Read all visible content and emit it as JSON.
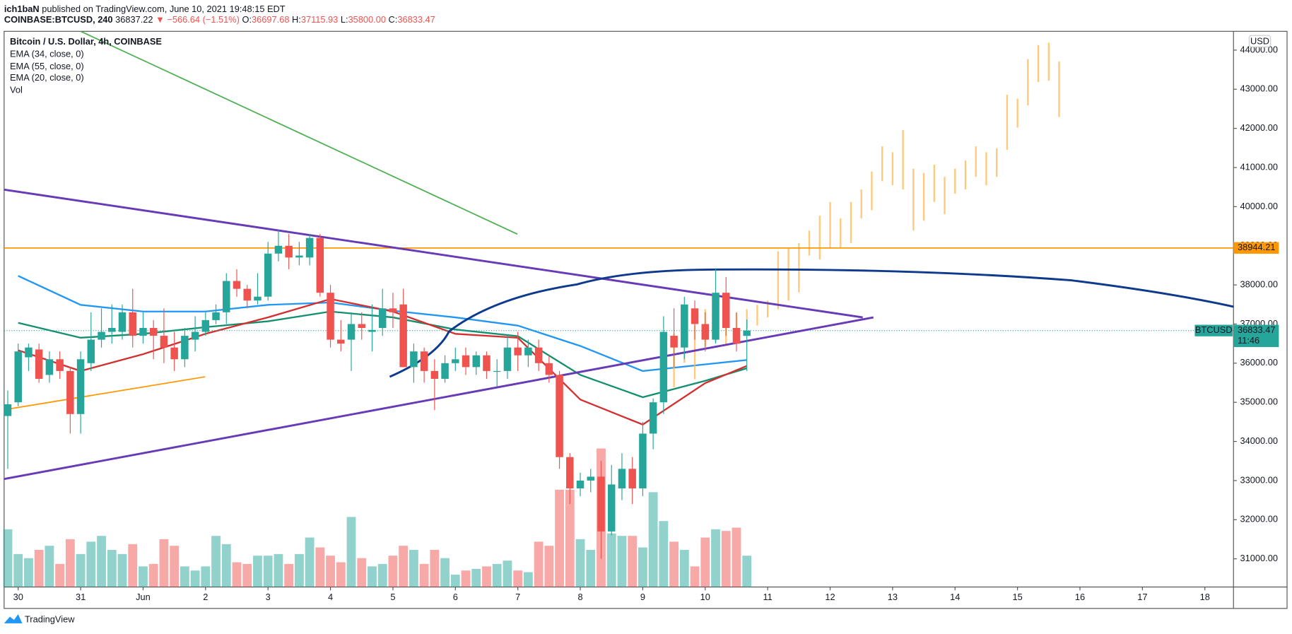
{
  "header": {
    "author": "ich1baN",
    "published": "published on TradingView.com, June 10, 2021 19:48:15 EDT",
    "symbol": "COINBASE:BTCUSD, 240",
    "last": "36837.22",
    "change": "▼ −566.64 (−1.51%)",
    "ohlc": [
      {
        "label": "O:",
        "value": "36697.68"
      },
      {
        "label": "H:",
        "value": "37115.93"
      },
      {
        "label": "L:",
        "value": "35800.00"
      },
      {
        "label": "C:",
        "value": "36833.47"
      }
    ]
  },
  "footer": {
    "brand": "TradingView"
  },
  "chart_data": {
    "type": "candlestick",
    "title": "Bitcoin / U.S. Dollar, 4h, COINBASE",
    "currency": "USD",
    "up_color": "#26a69a",
    "down_color": "#ef5350",
    "grid": false,
    "xlim": [
      -5.4,
      467
    ],
    "ylim": [
      30280,
      44480
    ],
    "xticks": [
      {
        "value": 0,
        "label": "30"
      },
      {
        "value": 24,
        "label": "31"
      },
      {
        "value": 48,
        "label": "Jun"
      },
      {
        "value": 72,
        "label": "2"
      },
      {
        "value": 96,
        "label": "3"
      },
      {
        "value": 120,
        "label": "4"
      },
      {
        "value": 144,
        "label": "5"
      },
      {
        "value": 168,
        "label": "6"
      },
      {
        "value": 192,
        "label": "7"
      },
      {
        "value": 216,
        "label": "8"
      },
      {
        "value": 240,
        "label": "9"
      },
      {
        "value": 264,
        "label": "10"
      },
      {
        "value": 288,
        "label": "11"
      },
      {
        "value": 312,
        "label": "12"
      },
      {
        "value": 336,
        "label": "13"
      },
      {
        "value": 360,
        "label": "14"
      },
      {
        "value": 384,
        "label": "15"
      },
      {
        "value": 408,
        "label": "16"
      },
      {
        "value": 432,
        "label": "17"
      },
      {
        "value": 456,
        "label": "18"
      }
    ],
    "yticks": [
      {
        "value": 31000,
        "label": "31000.00"
      },
      {
        "value": 32000,
        "label": "32000.00"
      },
      {
        "value": 33000,
        "label": "33000.00"
      },
      {
        "value": 34000,
        "label": "34000.00"
      },
      {
        "value": 35000,
        "label": "35000.00"
      },
      {
        "value": 36000,
        "label": "36000.00"
      },
      {
        "value": 37000,
        "label": "37000.00"
      },
      {
        "value": 38000,
        "label": "38000.00"
      },
      {
        "value": 39000,
        "label": "39000.00"
      },
      {
        "value": 40000,
        "label": "40000.00"
      },
      {
        "value": 41000,
        "label": "41000.00"
      },
      {
        "value": 42000,
        "label": "42000.00"
      },
      {
        "value": 43000,
        "label": "43000.00"
      },
      {
        "value": 44000,
        "label": "44000.00"
      }
    ],
    "x": [
      -4,
      0,
      4,
      8,
      12,
      16,
      20,
      24,
      28,
      32,
      36,
      40,
      44,
      48,
      52,
      56,
      60,
      64,
      68,
      72,
      76,
      80,
      84,
      88,
      92,
      96,
      100,
      104,
      108,
      112,
      116,
      120,
      124,
      128,
      132,
      136,
      140,
      144,
      148,
      152,
      156,
      160,
      164,
      168,
      172,
      176,
      180,
      184,
      188,
      192,
      196,
      200,
      204,
      208,
      212,
      216,
      220,
      224,
      228,
      232,
      236,
      240,
      244,
      248,
      252,
      256,
      260,
      264,
      268,
      272,
      276,
      280
    ],
    "open": [
      34650,
      35000,
      36150,
      36350,
      35700,
      36100,
      35800,
      34700,
      36000,
      36600,
      36800,
      36800,
      37300,
      36700,
      36900,
      36700,
      36400,
      36100,
      36600,
      36800,
      37100,
      37300,
      38100,
      37900,
      37600,
      37700,
      38800,
      39000,
      38700,
      38700,
      39200,
      37800,
      36600,
      36600,
      37000,
      36800,
      36900,
      37400,
      37500,
      35900,
      36300,
      35800,
      35600,
      36000,
      36200,
      35900,
      36200,
      35800,
      35800,
      36400,
      36200,
      36400,
      36000,
      35700,
      33600,
      32800,
      33000,
      33100,
      31700,
      32800,
      33300,
      32800,
      34200,
      35000,
      36700,
      36400,
      37400,
      37000,
      36600,
      37800,
      36900,
      36697.68
    ],
    "high": [
      35300,
      36500,
      36500,
      36500,
      36300,
      36300,
      35900,
      36300,
      37300,
      37400,
      37500,
      37500,
      37900,
      37300,
      37100,
      37400,
      36800,
      36900,
      37200,
      37300,
      37500,
      38300,
      38400,
      38000,
      38300,
      39100,
      39400,
      39300,
      39100,
      39300,
      39300,
      38000,
      37100,
      37300,
      37300,
      37500,
      37900,
      37800,
      37900,
      36500,
      36400,
      36100,
      36200,
      36400,
      36400,
      36300,
      36300,
      36100,
      36700,
      36800,
      36600,
      36600,
      36200,
      35800,
      33700,
      33200,
      33300,
      33500,
      33400,
      33700,
      33600,
      34500,
      35100,
      37200,
      37400,
      37700,
      37600,
      37300,
      38400,
      38200,
      37300,
      37115.93
    ],
    "low": [
      33300,
      34900,
      35800,
      35500,
      35500,
      35600,
      34200,
      34200,
      35800,
      36400,
      36500,
      36600,
      36400,
      36500,
      36100,
      36000,
      35800,
      35900,
      36300,
      36700,
      37000,
      37000,
      37700,
      37400,
      37500,
      37600,
      38600,
      38400,
      38500,
      38500,
      37700,
      36400,
      36300,
      35800,
      36600,
      36300,
      36700,
      36900,
      35900,
      35500,
      35500,
      34800,
      35500,
      35800,
      35700,
      35700,
      35600,
      35400,
      35600,
      35800,
      35900,
      35800,
      35500,
      33300,
      32400,
      32600,
      32700,
      31000,
      31600,
      32500,
      32400,
      32600,
      33800,
      34700,
      35900,
      36100,
      36600,
      36300,
      36500,
      36700,
      36300,
      35800
    ],
    "close": [
      34950,
      36300,
      36400,
      35600,
      36100,
      35800,
      34700,
      36100,
      36600,
      36800,
      36900,
      37300,
      36700,
      36900,
      36700,
      36400,
      36100,
      36700,
      36800,
      37100,
      37300,
      38100,
      37900,
      37600,
      37700,
      38800,
      39000,
      38700,
      38750,
      39200,
      37800,
      36600,
      36500,
      37000,
      36900,
      36850,
      37400,
      37300,
      35900,
      36300,
      35800,
      35600,
      36000,
      36100,
      35900,
      36200,
      35800,
      35800,
      36400,
      36200,
      36400,
      36000,
      35700,
      33600,
      32800,
      33000,
      33100,
      31700,
      32900,
      33300,
      32800,
      34200,
      35000,
      36800,
      36400,
      37500,
      37000,
      36600,
      37800,
      36900,
      36500,
      36833.47
    ],
    "volume_name": "Vol",
    "volume_ylim": [
      0,
      13480
    ],
    "volume": [
      1400,
      800,
      700,
      900,
      1000,
      560,
      1160,
      800,
      1100,
      1240,
      900,
      800,
      1040,
      500,
      560,
      1160,
      1000,
      500,
      400,
      500,
      1240,
      1040,
      600,
      560,
      760,
      760,
      800,
      560,
      800,
      1200,
      960,
      760,
      600,
      1700,
      700,
      500,
      560,
      760,
      1000,
      900,
      560,
      900,
      700,
      300,
      400,
      440,
      500,
      560,
      640,
      400,
      360,
      1100,
      1000,
      2360,
      2360,
      1160,
      900,
      3360,
      1300,
      1240,
      1240,
      960,
      2300,
      1600,
      1100,
      900,
      500,
      1200,
      1400,
      1360,
      1440,
      760
    ],
    "lines": [
      {
        "name": "EMA (34, close, 0)",
        "color": "#138f6f",
        "x": [
          0,
          24,
          48,
          72,
          96,
          120,
          144,
          168,
          192,
          216,
          240,
          264,
          280
        ],
        "values": [
          37030,
          36650,
          36750,
          36920,
          37070,
          37320,
          37170,
          36860,
          36690,
          35700,
          35130,
          35550,
          35870
        ]
      },
      {
        "name": "EMA (55, close, 0)",
        "color": "#2196f3",
        "x": [
          0,
          24,
          48,
          72,
          96,
          120,
          144,
          168,
          192,
          216,
          240,
          264,
          280
        ],
        "values": [
          38230,
          37490,
          37320,
          37320,
          37490,
          37550,
          37340,
          37170,
          36960,
          36440,
          35800,
          35970,
          36080
        ]
      },
      {
        "name": "EMA (20, close, 0)",
        "color": "#d32f2f",
        "x": [
          0,
          24,
          48,
          72,
          96,
          120,
          144,
          168,
          192,
          216,
          240,
          264,
          280
        ],
        "values": [
          36330,
          35800,
          36230,
          36750,
          37170,
          37640,
          37320,
          36750,
          36650,
          35070,
          34430,
          35490,
          35930
        ]
      }
    ],
    "projection": {
      "color": "#ffb74d",
      "x": [
        252,
        256,
        260,
        264,
        268,
        272,
        276,
        280,
        284,
        288,
        292,
        296,
        300,
        304,
        308,
        312,
        316,
        320,
        324,
        328,
        332,
        336,
        340,
        344,
        348,
        352,
        356,
        360,
        364,
        368,
        372,
        376,
        380,
        384,
        388,
        392,
        396,
        400
      ],
      "high": [
        36750,
        37070,
        36960,
        37380,
        37280,
        37170,
        37280,
        37380,
        37490,
        37600,
        38860,
        38960,
        39070,
        39390,
        39770,
        40120,
        39700,
        40120,
        40440,
        40900,
        41540,
        41390,
        41960,
        40970,
        40860,
        41070,
        40760,
        40970,
        41180,
        41540,
        41390,
        41490,
        42860,
        42760,
        43770,
        44130,
        44190,
        43710
      ],
      "low": [
        35380,
        36010,
        35590,
        36440,
        36540,
        36440,
        36750,
        36860,
        36960,
        37170,
        37380,
        37600,
        37810,
        38750,
        38650,
        38960,
        38960,
        39070,
        39700,
        39910,
        40650,
        40550,
        40440,
        39390,
        39640,
        40120,
        39810,
        40330,
        40440,
        40760,
        40550,
        40760,
        41450,
        42020,
        42590,
        43180,
        43220,
        42290
      ]
    },
    "hlines": [
      {
        "value": 38944.21,
        "color": "#ff9800"
      }
    ],
    "price_line": {
      "name": "BTCUSD",
      "value": 36833.47,
      "countdown": "11:46",
      "color": "#26a69a"
    }
  }
}
